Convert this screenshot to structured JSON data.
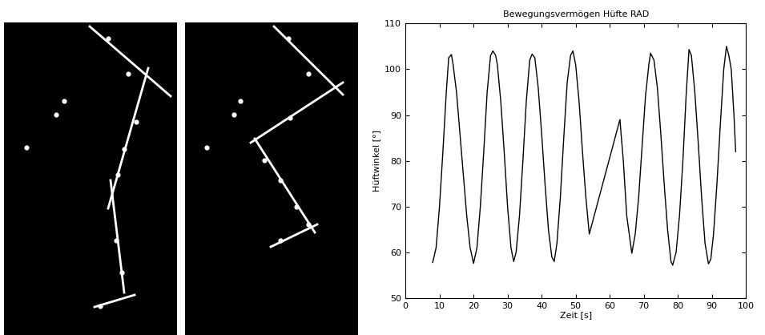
{
  "chart_data": {
    "type": "line",
    "title": "Bewegungsvermögen Hüfte RAD",
    "x_label": "Zeit [s]",
    "y_label": "Hüftwinkel [°]",
    "x": [
      8,
      9,
      10,
      11,
      12,
      12.7,
      13.5,
      14,
      15,
      16,
      17,
      18,
      19,
      20,
      21,
      22,
      23,
      24,
      25,
      25.7,
      26.5,
      27,
      28,
      29,
      30,
      31,
      31.8,
      32.5,
      33.5,
      34.5,
      35.5,
      36.5,
      37.2,
      38,
      39,
      40,
      41,
      42,
      43,
      43.7,
      44.5,
      45.5,
      46.5,
      47.5,
      48.5,
      49.2,
      50,
      51,
      52,
      53,
      54,
      63,
      64,
      65,
      66.5,
      67.5,
      68.5,
      69.5,
      70.5,
      71.5,
      72,
      73,
      74,
      75,
      76,
      77,
      78,
      78.5,
      79.5,
      80.5,
      81.5,
      82.5,
      83.3,
      84,
      85,
      86,
      87,
      88,
      89,
      89.7,
      90.5,
      91.5,
      92.5,
      93.5,
      94.3,
      95,
      95.7,
      96.5,
      97
    ],
    "values": [
      57.8,
      61,
      70,
      82,
      95,
      102.5,
      103.2,
      101,
      95,
      86,
      77,
      68,
      61,
      57.6,
      61,
      70,
      82,
      95,
      103,
      104,
      103,
      101,
      93,
      82,
      70,
      61,
      58,
      60,
      68,
      80,
      93,
      102,
      103.3,
      102.5,
      96,
      86,
      75,
      65,
      59,
      58,
      62,
      72,
      85,
      97,
      103,
      104,
      101,
      93,
      82,
      72,
      64,
      89,
      80,
      68,
      59.8,
      64,
      72,
      83,
      94,
      101,
      103.5,
      102,
      96,
      86,
      75,
      65,
      58,
      57.2,
      60,
      68,
      80,
      95,
      104.3,
      103,
      95,
      84,
      72,
      62,
      57.5,
      58.5,
      64,
      75,
      88,
      100,
      105,
      103,
      100,
      90,
      82
    ],
    "color": "#000000",
    "xlim": [
      0,
      100
    ],
    "xticks": [
      0,
      10,
      20,
      30,
      40,
      50,
      60,
      70,
      80,
      90,
      100
    ],
    "ylim": [
      50,
      110
    ],
    "yticks": [
      50,
      60,
      70,
      80,
      90,
      100,
      110
    ],
    "grid": false
  }
}
